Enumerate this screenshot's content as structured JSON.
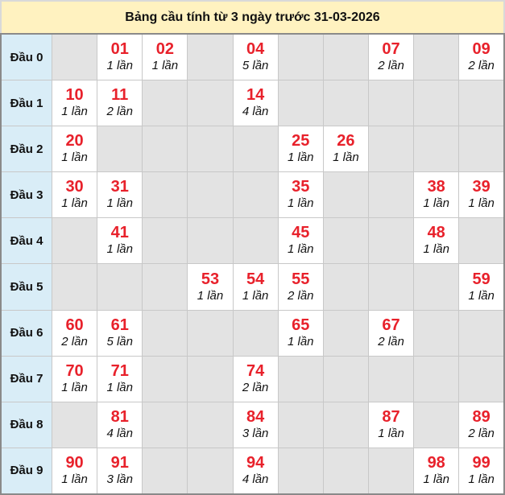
{
  "title": "Bảng cầu tính từ 3 ngày trước 31-03-2026",
  "colors": {
    "number": "#e8212b",
    "header_bg": "#fff2c0",
    "label_bg": "#d9edf7",
    "empty_bg": "#e3e3e3"
  },
  "rows": [
    {
      "label": "Đầu 0",
      "cells": [
        null,
        {
          "num": "01",
          "count": "1 lần"
        },
        {
          "num": "02",
          "count": "1 lần"
        },
        null,
        {
          "num": "04",
          "count": "5 lần"
        },
        null,
        null,
        {
          "num": "07",
          "count": "2 lần"
        },
        null,
        {
          "num": "09",
          "count": "2 lần"
        }
      ]
    },
    {
      "label": "Đầu 1",
      "cells": [
        {
          "num": "10",
          "count": "1 lần"
        },
        {
          "num": "11",
          "count": "2 lần"
        },
        null,
        null,
        {
          "num": "14",
          "count": "4 lần"
        },
        null,
        null,
        null,
        null,
        null
      ]
    },
    {
      "label": "Đầu 2",
      "cells": [
        {
          "num": "20",
          "count": "1 lần"
        },
        null,
        null,
        null,
        null,
        {
          "num": "25",
          "count": "1 lần"
        },
        {
          "num": "26",
          "count": "1 lần"
        },
        null,
        null,
        null
      ]
    },
    {
      "label": "Đầu 3",
      "cells": [
        {
          "num": "30",
          "count": "1 lần"
        },
        {
          "num": "31",
          "count": "1 lần"
        },
        null,
        null,
        null,
        {
          "num": "35",
          "count": "1 lần"
        },
        null,
        null,
        {
          "num": "38",
          "count": "1 lần"
        },
        {
          "num": "39",
          "count": "1 lần"
        }
      ]
    },
    {
      "label": "Đầu 4",
      "cells": [
        null,
        {
          "num": "41",
          "count": "1 lần"
        },
        null,
        null,
        null,
        {
          "num": "45",
          "count": "1 lần"
        },
        null,
        null,
        {
          "num": "48",
          "count": "1 lần"
        },
        null
      ]
    },
    {
      "label": "Đầu 5",
      "cells": [
        null,
        null,
        null,
        {
          "num": "53",
          "count": "1 lần"
        },
        {
          "num": "54",
          "count": "1 lần"
        },
        {
          "num": "55",
          "count": "2 lần"
        },
        null,
        null,
        null,
        {
          "num": "59",
          "count": "1 lần"
        }
      ]
    },
    {
      "label": "Đầu 6",
      "cells": [
        {
          "num": "60",
          "count": "2 lần"
        },
        {
          "num": "61",
          "count": "5 lần"
        },
        null,
        null,
        null,
        {
          "num": "65",
          "count": "1 lần"
        },
        null,
        {
          "num": "67",
          "count": "2 lần"
        },
        null,
        null
      ]
    },
    {
      "label": "Đầu 7",
      "cells": [
        {
          "num": "70",
          "count": "1 lần"
        },
        {
          "num": "71",
          "count": "1 lần"
        },
        null,
        null,
        {
          "num": "74",
          "count": "2 lần"
        },
        null,
        null,
        null,
        null,
        null
      ]
    },
    {
      "label": "Đầu 8",
      "cells": [
        null,
        {
          "num": "81",
          "count": "4 lần"
        },
        null,
        null,
        {
          "num": "84",
          "count": "3 lần"
        },
        null,
        null,
        {
          "num": "87",
          "count": "1 lần"
        },
        null,
        {
          "num": "89",
          "count": "2 lần"
        }
      ]
    },
    {
      "label": "Đầu 9",
      "cells": [
        {
          "num": "90",
          "count": "1 lần"
        },
        {
          "num": "91",
          "count": "3 lần"
        },
        null,
        null,
        {
          "num": "94",
          "count": "4 lần"
        },
        null,
        null,
        null,
        {
          "num": "98",
          "count": "1 lần"
        },
        {
          "num": "99",
          "count": "1 lần"
        }
      ]
    }
  ]
}
